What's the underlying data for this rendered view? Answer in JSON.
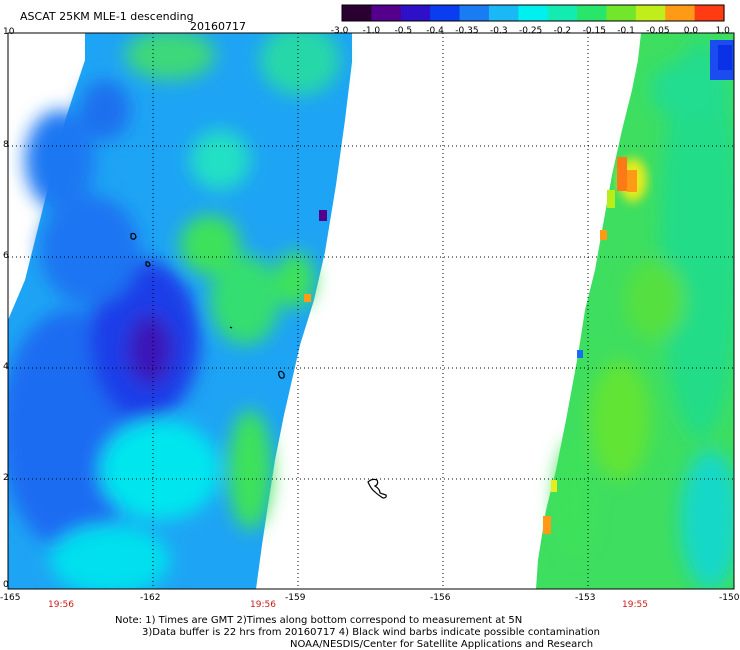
{
  "header": {
    "title": "ASCAT 25KM MLE-1 descending",
    "date": "20160717"
  },
  "colorbar": {
    "labels": [
      "-3.0",
      "-1.0",
      "-0.5",
      "-0.4",
      "-0.35",
      "-0.3",
      "-0.25",
      "-0.2",
      "-0.15",
      "-0.1",
      "-0.05",
      "0.0",
      "1.0"
    ],
    "colors": [
      "#2a0030",
      "#55008c",
      "#2d10c8",
      "#0a3cf0",
      "#1a7cf2",
      "#1ab8f4",
      "#00f0f0",
      "#12ecb0",
      "#28e66a",
      "#72e62a",
      "#c0ee1a",
      "#ff9a16",
      "#ff3b14"
    ]
  },
  "axes": {
    "y_ticks": [
      "10",
      "8",
      "6",
      "4",
      "2",
      "0"
    ],
    "x_ticks": [
      "-165",
      "-162",
      "-159",
      "-156",
      "-153",
      "-150"
    ],
    "x_range": [
      -165,
      -150
    ],
    "y_range": [
      0,
      10
    ]
  },
  "times": [
    "19:56",
    "19:56",
    "19:55"
  ],
  "notes": [
    "Note: 1) Times are GMT 2)Times along bottom correspond to measurement at 5N",
    "3)Data buffer is 22 hrs from 20160717 4) Black wind barbs indicate possible contamination",
    "NOAA/NESDIS/Center for Satellite Applications and Research"
  ]
}
